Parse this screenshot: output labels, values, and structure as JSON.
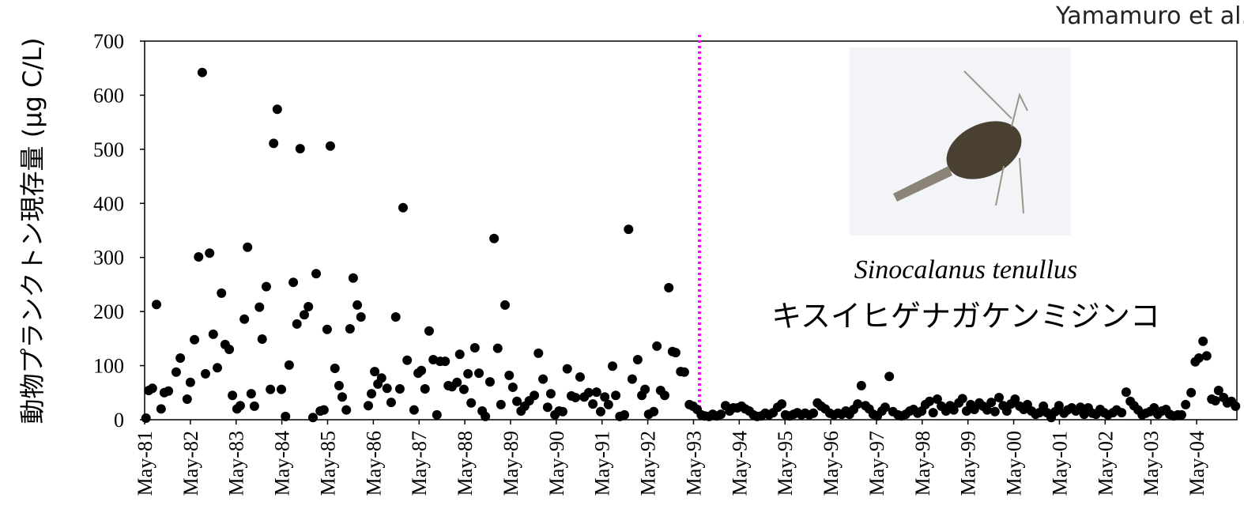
{
  "chart_data": {
    "type": "scatter",
    "y_label": "動物プランクトン現存量 (μg C/L)",
    "annotations": [
      "Sinocalanus tenullus",
      "キスイヒゲナガケンミジンコ",
      "Yamamuro et al."
    ],
    "vline": {
      "x": 1993.46,
      "color": "#ff00ff"
    },
    "color": "#000000",
    "xlim": [
      1981.33,
      2005.21
    ],
    "ylim": [
      0,
      700
    ],
    "yticks": [
      0,
      100,
      200,
      300,
      400,
      500,
      600,
      700
    ],
    "xticks": [
      {
        "value": 1981.33,
        "label": "May-81"
      },
      {
        "value": 1982.33,
        "label": "May-82"
      },
      {
        "value": 1983.33,
        "label": "May-83"
      },
      {
        "value": 1984.33,
        "label": "May-84"
      },
      {
        "value": 1985.33,
        "label": "May-85"
      },
      {
        "value": 1986.33,
        "label": "May-86"
      },
      {
        "value": 1987.33,
        "label": "May-87"
      },
      {
        "value": 1988.33,
        "label": "May-88"
      },
      {
        "value": 1989.33,
        "label": "May-89"
      },
      {
        "value": 1990.33,
        "label": "May-90"
      },
      {
        "value": 1991.33,
        "label": "May-91"
      },
      {
        "value": 1992.33,
        "label": "May-92"
      },
      {
        "value": 1993.33,
        "label": "May-93"
      },
      {
        "value": 1994.33,
        "label": "May-94"
      },
      {
        "value": 1995.33,
        "label": "May-95"
      },
      {
        "value": 1996.33,
        "label": "May-96"
      },
      {
        "value": 1997.33,
        "label": "May-97"
      },
      {
        "value": 1998.33,
        "label": "May-98"
      },
      {
        "value": 1999.33,
        "label": "May-99"
      },
      {
        "value": 2000.33,
        "label": "May-00"
      },
      {
        "value": 2001.33,
        "label": "May-01"
      },
      {
        "value": 2002.33,
        "label": "May-02"
      },
      {
        "value": 2003.33,
        "label": "May-03"
      },
      {
        "value": 2004.33,
        "label": "May-04"
      }
    ],
    "x": [
      1981.36,
      1981.42,
      1981.5,
      1981.59,
      1981.69,
      1981.76,
      1981.85,
      1982.02,
      1982.11,
      1982.26,
      1982.33,
      1982.42,
      1982.51,
      1982.59,
      1982.66,
      1982.75,
      1982.83,
      1982.92,
      1983.01,
      1983.09,
      1983.18,
      1983.25,
      1983.35,
      1983.42,
      1983.51,
      1983.58,
      1983.66,
      1983.73,
      1983.84,
      1983.9,
      1983.99,
      1984.08,
      1984.15,
      1984.23,
      1984.32,
      1984.41,
      1984.49,
      1984.58,
      1984.66,
      1984.73,
      1984.82,
      1984.91,
      1985.01,
      1985.08,
      1985.17,
      1985.25,
      1985.32,
      1985.39,
      1985.49,
      1985.58,
      1985.65,
      1985.74,
      1985.82,
      1985.89,
      1985.98,
      1986.06,
      1986.22,
      1986.29,
      1986.36,
      1986.43,
      1986.51,
      1986.63,
      1986.72,
      1986.82,
      1986.91,
      1986.98,
      1987.07,
      1987.22,
      1987.31,
      1987.38,
      1987.46,
      1987.55,
      1987.64,
      1987.72,
      1987.79,
      1987.9,
      1987.97,
      1988.05,
      1988.16,
      1988.22,
      1988.31,
      1988.4,
      1988.47,
      1988.55,
      1988.64,
      1988.71,
      1988.78,
      1988.88,
      1988.97,
      1989.05,
      1989.12,
      1989.21,
      1989.3,
      1989.38,
      1989.47,
      1989.56,
      1989.64,
      1989.74,
      1989.85,
      1989.94,
      1990.04,
      1990.14,
      1990.21,
      1990.3,
      1990.39,
      1990.47,
      1990.57,
      1990.66,
      1990.75,
      1990.85,
      1990.94,
      1991.04,
      1991.13,
      1991.21,
      1991.3,
      1991.39,
      1991.47,
      1991.56,
      1991.63,
      1991.72,
      1991.82,
      1991.91,
      1991.99,
      1992.11,
      1992.2,
      1992.27,
      1992.35,
      1992.46,
      1992.53,
      1992.61,
      1992.7,
      1992.79,
      1992.87,
      1992.94,
      1993.05,
      1993.13,
      1993.24,
      1993.32,
      1993.41,
      1993.5,
      1993.58,
      1993.67,
      1993.75,
      1993.84,
      1993.93,
      1994.03,
      1994.12,
      1994.2,
      1994.29,
      1994.38,
      1994.46,
      1994.55,
      1994.64,
      1994.72,
      1994.81,
      1994.9,
      1994.98,
      1995.07,
      1995.17,
      1995.26,
      1995.34,
      1995.43,
      1995.52,
      1995.6,
      1995.69,
      1995.77,
      1995.86,
      1995.95,
      1996.04,
      1996.12,
      1996.21,
      1996.31,
      1996.4,
      1996.49,
      1996.57,
      1996.66,
      1996.74,
      1996.83,
      1996.92,
      1997.0,
      1997.09,
      1997.17,
      1997.26,
      1997.35,
      1997.45,
      1997.52,
      1997.61,
      1997.69,
      1997.8,
      1997.88,
      1997.97,
      1998.06,
      1998.14,
      1998.23,
      1998.32,
      1998.4,
      1998.49,
      1998.57,
      1998.66,
      1998.75,
      1998.85,
      1998.94,
      1999.02,
      1999.13,
      1999.21,
      1999.3,
      1999.39,
      1999.47,
      1999.58,
      1999.66,
      1999.75,
      1999.84,
      1999.92,
      2000.01,
      2000.1,
      2000.18,
      2000.27,
      2000.36,
      2000.46,
      2000.55,
      2000.63,
      2000.72,
      2000.81,
      2000.89,
      2000.98,
      2001.06,
      2001.15,
      2001.24,
      2001.32,
      2001.43,
      2001.51,
      2001.6,
      2001.69,
      2001.79,
      2001.87,
      2001.96,
      2002.05,
      2002.13,
      2002.22,
      2002.31,
      2002.39,
      2002.5,
      2002.58,
      2002.69,
      2002.79,
      2002.88,
      2002.96,
      2003.05,
      2003.14,
      2003.22,
      2003.31,
      2003.4,
      2003.48,
      2003.57,
      2003.66,
      2003.74,
      2003.83,
      2003.92,
      2004.0,
      2004.09,
      2004.21,
      2004.3,
      2004.38,
      2004.47,
      2004.55,
      2004.66,
      2004.74,
      2004.81,
      2004.92,
      2005.0,
      2005.09,
      2005.18
    ],
    "values": [
      3,
      54,
      58,
      213,
      20,
      50,
      53,
      88,
      114,
      38,
      69,
      148,
      301,
      642,
      85,
      308,
      158,
      96,
      234,
      139,
      130,
      45,
      20,
      26,
      186,
      319,
      48,
      25,
      208,
      149,
      246,
      56,
      511,
      574,
      56,
      6,
      101,
      254,
      177,
      501,
      194,
      209,
      4,
      270,
      16,
      18,
      167,
      506,
      95,
      63,
      42,
      18,
      168,
      262,
      212,
      190,
      26,
      48,
      89,
      66,
      77,
      58,
      32,
      190,
      57,
      392,
      110,
      18,
      86,
      91,
      57,
      164,
      111,
      9,
      108,
      108,
      63,
      61,
      69,
      121,
      56,
      85,
      31,
      133,
      86,
      16,
      6,
      70,
      335,
      132,
      28,
      212,
      82,
      60,
      34,
      16,
      25,
      35,
      45,
      123,
      75,
      23,
      48,
      9,
      16,
      15,
      94,
      44,
      41,
      79,
      42,
      50,
      29,
      51,
      15,
      42,
      28,
      99,
      45,
      6,
      9,
      352,
      75,
      111,
      45,
      56,
      10,
      15,
      136,
      54,
      45,
      244,
      126,
      124,
      89,
      88,
      28,
      25,
      19,
      9,
      7,
      6,
      10,
      7,
      10,
      26,
      16,
      22,
      22,
      25,
      20,
      16,
      9,
      6,
      7,
      12,
      9,
      13,
      23,
      29,
      9,
      7,
      10,
      13,
      9,
      12,
      9,
      12,
      31,
      25,
      20,
      12,
      9,
      12,
      10,
      16,
      10,
      19,
      29,
      63,
      26,
      20,
      10,
      7,
      16,
      23,
      80,
      15,
      9,
      7,
      10,
      16,
      19,
      12,
      16,
      28,
      34,
      13,
      38,
      25,
      16,
      26,
      18,
      31,
      39,
      16,
      28,
      19,
      31,
      25,
      18,
      32,
      15,
      41,
      26,
      16,
      29,
      38,
      25,
      19,
      28,
      16,
      10,
      13,
      25,
      13,
      4,
      15,
      26,
      12,
      18,
      22,
      16,
      23,
      10,
      22,
      12,
      10,
      19,
      13,
      9,
      13,
      18,
      13,
      51,
      34,
      26,
      18,
      9,
      12,
      15,
      22,
      10,
      16,
      19,
      10,
      7,
      9,
      9,
      28,
      50,
      107,
      114,
      145,
      118,
      38,
      35,
      54,
      41,
      31,
      34,
      25
    ]
  }
}
